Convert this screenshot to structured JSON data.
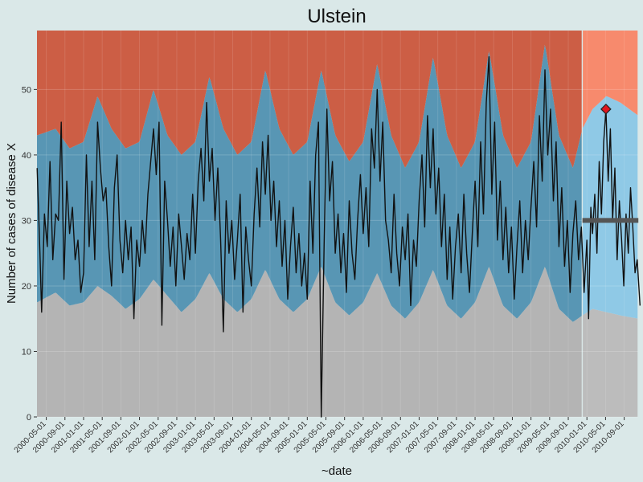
{
  "chart_data": {
    "type": "area",
    "title": "Ulstein",
    "xlabel": "~date",
    "ylabel": "Number of cases of disease X",
    "x_range": [
      "2000-03-01",
      "2010-12-01"
    ],
    "ylim": [
      0,
      59
    ],
    "y_ticks": [
      0,
      10,
      20,
      30,
      40,
      50
    ],
    "x_tick_labels": [
      "2000-05-01",
      "2000-09-01",
      "2001-01-01",
      "2001-05-01",
      "2001-09-01",
      "2002-01-01",
      "2002-05-01",
      "2002-09-01",
      "2003-01-01",
      "2003-05-01",
      "2003-09-01",
      "2004-01-01",
      "2004-05-01",
      "2004-09-01",
      "2005-01-01",
      "2005-05-01",
      "2005-09-01",
      "2006-01-01",
      "2006-05-01",
      "2006-09-01",
      "2007-01-01",
      "2007-05-01",
      "2007-09-01",
      "2008-01-01",
      "2008-05-01",
      "2008-09-01",
      "2009-01-01",
      "2009-05-01",
      "2009-09-01",
      "2010-01-01",
      "2010-05-01",
      "2010-09-01"
    ],
    "grid": true,
    "legend": "none",
    "split_date": "2009-12-01",
    "colors": {
      "background": "#dae8e8",
      "panel": "#ebebeb",
      "historical_low_band": "#b4b4b4",
      "historical_normal_band": "#5896b4",
      "historical_high_band": "#cc5e45",
      "current_low_band": "#bcbcbc",
      "current_normal_band": "#8fc9e6",
      "current_high_band": "#f78a6d",
      "observed_line": "#111111",
      "baseline_line": "#555555",
      "alert_marker": "#e0161e"
    },
    "bands": {
      "lower_threshold": [
        [
          2000.17,
          17.5
        ],
        [
          2000.5,
          19
        ],
        [
          2000.75,
          17
        ],
        [
          2001.0,
          17.5
        ],
        [
          2001.25,
          20
        ],
        [
          2001.5,
          18.5
        ],
        [
          2001.75,
          16.5
        ],
        [
          2002.0,
          18
        ],
        [
          2002.25,
          21
        ],
        [
          2002.5,
          18.5
        ],
        [
          2002.75,
          16
        ],
        [
          2003.0,
          18
        ],
        [
          2003.25,
          22
        ],
        [
          2003.5,
          18
        ],
        [
          2003.75,
          16
        ],
        [
          2004.0,
          18
        ],
        [
          2004.25,
          22.5
        ],
        [
          2004.5,
          18
        ],
        [
          2004.75,
          16
        ],
        [
          2005.0,
          18
        ],
        [
          2005.25,
          23
        ],
        [
          2005.5,
          17.5
        ],
        [
          2005.75,
          15.5
        ],
        [
          2006.0,
          17.5
        ],
        [
          2006.25,
          22
        ],
        [
          2006.5,
          17
        ],
        [
          2006.75,
          15
        ],
        [
          2007.0,
          17.5
        ],
        [
          2007.25,
          22.5
        ],
        [
          2007.5,
          17
        ],
        [
          2007.75,
          15
        ],
        [
          2008.0,
          17.5
        ],
        [
          2008.25,
          23
        ],
        [
          2008.5,
          17
        ],
        [
          2008.75,
          15
        ],
        [
          2009.0,
          17.5
        ],
        [
          2009.25,
          23
        ],
        [
          2009.5,
          16.5
        ],
        [
          2009.75,
          14.5
        ],
        [
          2009.92,
          15.5
        ],
        [
          2010.1,
          16.5
        ],
        [
          2010.35,
          16
        ],
        [
          2010.6,
          15.5
        ],
        [
          2010.92,
          15
        ]
      ],
      "upper_threshold": [
        [
          2000.17,
          43
        ],
        [
          2000.5,
          44
        ],
        [
          2000.75,
          41
        ],
        [
          2001.0,
          42
        ],
        [
          2001.25,
          49
        ],
        [
          2001.5,
          44
        ],
        [
          2001.75,
          41
        ],
        [
          2002.0,
          42
        ],
        [
          2002.25,
          50
        ],
        [
          2002.5,
          43
        ],
        [
          2002.75,
          40
        ],
        [
          2003.0,
          42
        ],
        [
          2003.25,
          52
        ],
        [
          2003.5,
          44
        ],
        [
          2003.75,
          40
        ],
        [
          2004.0,
          42
        ],
        [
          2004.25,
          53
        ],
        [
          2004.5,
          44
        ],
        [
          2004.75,
          40
        ],
        [
          2005.0,
          42
        ],
        [
          2005.25,
          53
        ],
        [
          2005.5,
          43
        ],
        [
          2005.75,
          39
        ],
        [
          2006.0,
          42
        ],
        [
          2006.25,
          54
        ],
        [
          2006.5,
          43
        ],
        [
          2006.75,
          38
        ],
        [
          2007.0,
          42
        ],
        [
          2007.25,
          55
        ],
        [
          2007.5,
          43
        ],
        [
          2007.75,
          38
        ],
        [
          2008.0,
          42
        ],
        [
          2008.25,
          56
        ],
        [
          2008.5,
          43
        ],
        [
          2008.75,
          38
        ],
        [
          2009.0,
          42
        ],
        [
          2009.25,
          57
        ],
        [
          2009.5,
          43
        ],
        [
          2009.75,
          38
        ],
        [
          2009.92,
          44
        ],
        [
          2010.1,
          47
        ],
        [
          2010.35,
          49
        ],
        [
          2010.6,
          48
        ],
        [
          2010.92,
          46
        ]
      ]
    },
    "observed": [
      [
        2000.17,
        38
      ],
      [
        2000.22,
        25
      ],
      [
        2000.25,
        16
      ],
      [
        2000.3,
        31
      ],
      [
        2000.35,
        26
      ],
      [
        2000.4,
        39
      ],
      [
        2000.45,
        24
      ],
      [
        2000.5,
        31
      ],
      [
        2000.55,
        30
      ],
      [
        2000.6,
        45
      ],
      [
        2000.65,
        21
      ],
      [
        2000.7,
        36
      ],
      [
        2000.75,
        28
      ],
      [
        2000.8,
        32
      ],
      [
        2000.85,
        24
      ],
      [
        2000.9,
        27
      ],
      [
        2000.95,
        19
      ],
      [
        2001.0,
        22
      ],
      [
        2001.05,
        40
      ],
      [
        2001.1,
        26
      ],
      [
        2001.15,
        36
      ],
      [
        2001.2,
        24
      ],
      [
        2001.25,
        45
      ],
      [
        2001.3,
        38
      ],
      [
        2001.35,
        33
      ],
      [
        2001.4,
        35
      ],
      [
        2001.45,
        26
      ],
      [
        2001.5,
        20
      ],
      [
        2001.55,
        35
      ],
      [
        2001.6,
        40
      ],
      [
        2001.65,
        27
      ],
      [
        2001.7,
        22
      ],
      [
        2001.75,
        30
      ],
      [
        2001.8,
        24
      ],
      [
        2001.85,
        29
      ],
      [
        2001.9,
        15
      ],
      [
        2001.95,
        27
      ],
      [
        2002.0,
        23
      ],
      [
        2002.05,
        30
      ],
      [
        2002.1,
        25
      ],
      [
        2002.15,
        34
      ],
      [
        2002.2,
        39
      ],
      [
        2002.25,
        44
      ],
      [
        2002.3,
        37
      ],
      [
        2002.35,
        45
      ],
      [
        2002.4,
        14
      ],
      [
        2002.45,
        36
      ],
      [
        2002.5,
        30
      ],
      [
        2002.55,
        23
      ],
      [
        2002.6,
        29
      ],
      [
        2002.65,
        20
      ],
      [
        2002.7,
        31
      ],
      [
        2002.75,
        26
      ],
      [
        2002.8,
        21
      ],
      [
        2002.85,
        28
      ],
      [
        2002.9,
        24
      ],
      [
        2002.95,
        34
      ],
      [
        2003.0,
        25
      ],
      [
        2003.05,
        36
      ],
      [
        2003.1,
        41
      ],
      [
        2003.15,
        33
      ],
      [
        2003.2,
        48
      ],
      [
        2003.25,
        36
      ],
      [
        2003.3,
        41
      ],
      [
        2003.35,
        30
      ],
      [
        2003.4,
        38
      ],
      [
        2003.45,
        27
      ],
      [
        2003.5,
        13
      ],
      [
        2003.55,
        33
      ],
      [
        2003.6,
        25
      ],
      [
        2003.65,
        30
      ],
      [
        2003.7,
        21
      ],
      [
        2003.75,
        27
      ],
      [
        2003.8,
        34
      ],
      [
        2003.85,
        16
      ],
      [
        2003.9,
        29
      ],
      [
        2003.95,
        24
      ],
      [
        2004.0,
        20
      ],
      [
        2004.05,
        31
      ],
      [
        2004.1,
        38
      ],
      [
        2004.15,
        29
      ],
      [
        2004.2,
        42
      ],
      [
        2004.25,
        34
      ],
      [
        2004.3,
        43
      ],
      [
        2004.35,
        30
      ],
      [
        2004.4,
        36
      ],
      [
        2004.45,
        26
      ],
      [
        2004.5,
        33
      ],
      [
        2004.55,
        23
      ],
      [
        2004.6,
        30
      ],
      [
        2004.65,
        18
      ],
      [
        2004.7,
        26
      ],
      [
        2004.75,
        32
      ],
      [
        2004.8,
        22
      ],
      [
        2004.85,
        28
      ],
      [
        2004.9,
        20
      ],
      [
        2004.95,
        25
      ],
      [
        2005.0,
        18
      ],
      [
        2005.05,
        36
      ],
      [
        2005.1,
        25
      ],
      [
        2005.15,
        40
      ],
      [
        2005.2,
        45
      ],
      [
        2005.25,
        0
      ],
      [
        2005.3,
        26
      ],
      [
        2005.35,
        47
      ],
      [
        2005.4,
        33
      ],
      [
        2005.45,
        39
      ],
      [
        2005.5,
        25
      ],
      [
        2005.55,
        31
      ],
      [
        2005.6,
        22
      ],
      [
        2005.65,
        28
      ],
      [
        2005.7,
        19
      ],
      [
        2005.75,
        33
      ],
      [
        2005.8,
        25
      ],
      [
        2005.85,
        21
      ],
      [
        2005.9,
        30
      ],
      [
        2005.95,
        37
      ],
      [
        2006.0,
        28
      ],
      [
        2006.05,
        35
      ],
      [
        2006.1,
        26
      ],
      [
        2006.15,
        44
      ],
      [
        2006.2,
        38
      ],
      [
        2006.25,
        50
      ],
      [
        2006.3,
        36
      ],
      [
        2006.35,
        45
      ],
      [
        2006.4,
        30
      ],
      [
        2006.45,
        27
      ],
      [
        2006.5,
        22
      ],
      [
        2006.55,
        34
      ],
      [
        2006.6,
        25
      ],
      [
        2006.65,
        20
      ],
      [
        2006.7,
        29
      ],
      [
        2006.75,
        24
      ],
      [
        2006.8,
        31
      ],
      [
        2006.85,
        17
      ],
      [
        2006.9,
        27
      ],
      [
        2006.95,
        23
      ],
      [
        2007.0,
        33
      ],
      [
        2007.05,
        40
      ],
      [
        2007.1,
        29
      ],
      [
        2007.15,
        46
      ],
      [
        2007.2,
        35
      ],
      [
        2007.25,
        44
      ],
      [
        2007.3,
        31
      ],
      [
        2007.35,
        38
      ],
      [
        2007.4,
        26
      ],
      [
        2007.45,
        34
      ],
      [
        2007.5,
        21
      ],
      [
        2007.55,
        29
      ],
      [
        2007.6,
        18
      ],
      [
        2007.65,
        26
      ],
      [
        2007.7,
        31
      ],
      [
        2007.75,
        22
      ],
      [
        2007.8,
        34
      ],
      [
        2007.85,
        25
      ],
      [
        2007.9,
        19
      ],
      [
        2007.95,
        28
      ],
      [
        2008.0,
        36
      ],
      [
        2008.05,
        26
      ],
      [
        2008.1,
        42
      ],
      [
        2008.15,
        31
      ],
      [
        2008.2,
        48
      ],
      [
        2008.25,
        55
      ],
      [
        2008.3,
        34
      ],
      [
        2008.35,
        45
      ],
      [
        2008.4,
        27
      ],
      [
        2008.45,
        36
      ],
      [
        2008.5,
        24
      ],
      [
        2008.55,
        32
      ],
      [
        2008.6,
        22
      ],
      [
        2008.65,
        29
      ],
      [
        2008.7,
        18
      ],
      [
        2008.75,
        26
      ],
      [
        2008.8,
        33
      ],
      [
        2008.85,
        22
      ],
      [
        2008.9,
        30
      ],
      [
        2008.95,
        24
      ],
      [
        2009.0,
        32
      ],
      [
        2009.05,
        39
      ],
      [
        2009.1,
        29
      ],
      [
        2009.15,
        46
      ],
      [
        2009.2,
        36
      ],
      [
        2009.25,
        53
      ],
      [
        2009.3,
        40
      ],
      [
        2009.35,
        47
      ],
      [
        2009.4,
        33
      ],
      [
        2009.45,
        42
      ],
      [
        2009.5,
        26
      ],
      [
        2009.55,
        35
      ],
      [
        2009.6,
        23
      ],
      [
        2009.65,
        30
      ],
      [
        2009.7,
        19
      ],
      [
        2009.75,
        28
      ],
      [
        2009.8,
        33
      ],
      [
        2009.85,
        24
      ],
      [
        2009.9,
        29
      ],
      [
        2009.95,
        19
      ],
      [
        2010.0,
        27
      ],
      [
        2010.03,
        15
      ],
      [
        2010.07,
        32
      ],
      [
        2010.1,
        28
      ],
      [
        2010.14,
        34
      ],
      [
        2010.18,
        25
      ],
      [
        2010.22,
        39
      ],
      [
        2010.26,
        31
      ],
      [
        2010.3,
        42
      ],
      [
        2010.34,
        47
      ],
      [
        2010.38,
        36
      ],
      [
        2010.42,
        44
      ],
      [
        2010.46,
        30
      ],
      [
        2010.5,
        38
      ],
      [
        2010.54,
        24
      ],
      [
        2010.58,
        33
      ],
      [
        2010.62,
        27
      ],
      [
        2010.66,
        20
      ],
      [
        2010.7,
        31
      ],
      [
        2010.74,
        25
      ],
      [
        2010.78,
        35
      ],
      [
        2010.82,
        29
      ],
      [
        2010.86,
        22
      ],
      [
        2010.9,
        24
      ],
      [
        2010.95,
        17
      ]
    ],
    "baseline": {
      "x": [
        2009.92,
        2010.92
      ],
      "y": 30
    },
    "alert_point": {
      "x": 2010.34,
      "y": 47
    }
  }
}
